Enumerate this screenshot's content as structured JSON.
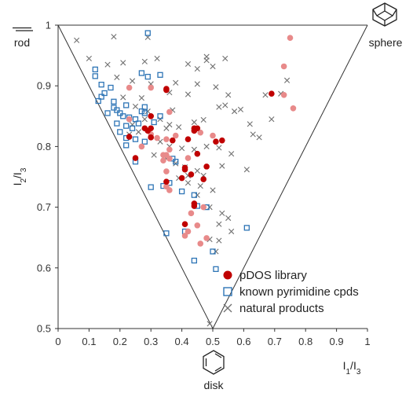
{
  "chart_data": {
    "type": "scatter",
    "title": "",
    "xlabel": "I1/I3",
    "ylabel": "I2/I3",
    "xlim": [
      0,
      1
    ],
    "ylim": [
      0.5,
      1
    ],
    "x_ticks": [
      "0",
      "0.1",
      "0.2",
      "0.3",
      "0.4",
      "0.5",
      "0.6",
      "0.7",
      "0.8",
      "0.9",
      "1"
    ],
    "y_ticks": [
      "0.5",
      "0.6",
      "0.7",
      "0.8",
      "0.9",
      "1"
    ],
    "grid": false,
    "legend_position": "bottom-right",
    "vertices": {
      "rod": "rod",
      "disk": "disk",
      "sphere": "sphere"
    },
    "colors": {
      "pdos_dark": "#c00000",
      "pdos_light": "#e88a8a",
      "pyrimidine": "#2e75b6",
      "natural": "#707070",
      "frame": "#333333"
    },
    "series": [
      {
        "name": "pDOS library",
        "marker": "circle",
        "points": [
          [
            0.35,
            0.895
          ],
          [
            0.69,
            0.887
          ],
          [
            0.3,
            0.85
          ],
          [
            0.28,
            0.83
          ],
          [
            0.23,
            0.816
          ],
          [
            0.29,
            0.826
          ],
          [
            0.37,
            0.81
          ],
          [
            0.42,
            0.812
          ],
          [
            0.3,
            0.815
          ],
          [
            0.44,
            0.826
          ],
          [
            0.45,
            0.83
          ],
          [
            0.51,
            0.808
          ],
          [
            0.45,
            0.788
          ],
          [
            0.25,
            0.781
          ],
          [
            0.41,
            0.765
          ],
          [
            0.48,
            0.767
          ],
          [
            0.43,
            0.754
          ],
          [
            0.4,
            0.748
          ],
          [
            0.41,
            0.762
          ],
          [
            0.47,
            0.746
          ],
          [
            0.35,
            0.742
          ],
          [
            0.44,
            0.706
          ],
          [
            0.44,
            0.702
          ],
          [
            0.41,
            0.672
          ],
          [
            0.35,
            0.893
          ],
          [
            0.53,
            0.81
          ],
          [
            0.3,
            0.83
          ],
          [
            0.44,
            0.83
          ]
        ],
        "light_points": [
          [
            0.75,
            0.979
          ],
          [
            0.73,
            0.932
          ],
          [
            0.73,
            0.885
          ],
          [
            0.76,
            0.863
          ],
          [
            0.3,
            0.897
          ],
          [
            0.23,
            0.897
          ],
          [
            0.36,
            0.857
          ],
          [
            0.23,
            0.845
          ],
          [
            0.3,
            0.82
          ],
          [
            0.32,
            0.814
          ],
          [
            0.35,
            0.812
          ],
          [
            0.38,
            0.818
          ],
          [
            0.5,
            0.818
          ],
          [
            0.36,
            0.795
          ],
          [
            0.46,
            0.823
          ],
          [
            0.34,
            0.786
          ],
          [
            0.35,
            0.786
          ],
          [
            0.42,
            0.781
          ],
          [
            0.36,
            0.78
          ],
          [
            0.34,
            0.777
          ],
          [
            0.35,
            0.759
          ],
          [
            0.35,
            0.734
          ],
          [
            0.36,
            0.728
          ],
          [
            0.43,
            0.69
          ],
          [
            0.45,
            0.67
          ],
          [
            0.42,
            0.66
          ],
          [
            0.41,
            0.653
          ],
          [
            0.48,
            0.649
          ],
          [
            0.46,
            0.64
          ],
          [
            0.47,
            0.7
          ],
          [
            0.27,
            0.8
          ]
        ]
      },
      {
        "name": "known pyrimidine cpds",
        "marker": "open-square",
        "points": [
          [
            0.29,
            0.987
          ],
          [
            0.12,
            0.927
          ],
          [
            0.12,
            0.916
          ],
          [
            0.14,
            0.902
          ],
          [
            0.17,
            0.897
          ],
          [
            0.15,
            0.888
          ],
          [
            0.14,
            0.882
          ],
          [
            0.18,
            0.874
          ],
          [
            0.18,
            0.864
          ],
          [
            0.22,
            0.868
          ],
          [
            0.19,
            0.86
          ],
          [
            0.2,
            0.855
          ],
          [
            0.21,
            0.85
          ],
          [
            0.23,
            0.848
          ],
          [
            0.25,
            0.845
          ],
          [
            0.27,
            0.858
          ],
          [
            0.28,
            0.855
          ],
          [
            0.26,
            0.838
          ],
          [
            0.22,
            0.834
          ],
          [
            0.24,
            0.83
          ],
          [
            0.2,
            0.824
          ],
          [
            0.22,
            0.814
          ],
          [
            0.25,
            0.812
          ],
          [
            0.28,
            0.808
          ],
          [
            0.27,
            0.921
          ],
          [
            0.29,
            0.915
          ],
          [
            0.33,
            0.918
          ],
          [
            0.13,
            0.875
          ],
          [
            0.16,
            0.855
          ],
          [
            0.25,
            0.775
          ],
          [
            0.28,
            0.865
          ],
          [
            0.33,
            0.85
          ],
          [
            0.37,
            0.78
          ],
          [
            0.3,
            0.733
          ],
          [
            0.34,
            0.735
          ],
          [
            0.38,
            0.775
          ],
          [
            0.36,
            0.74
          ],
          [
            0.4,
            0.726
          ],
          [
            0.44,
            0.72
          ],
          [
            0.45,
            0.702
          ],
          [
            0.48,
            0.7
          ],
          [
            0.41,
            0.66
          ],
          [
            0.35,
            0.657
          ],
          [
            0.44,
            0.612
          ],
          [
            0.51,
            0.598
          ],
          [
            0.61,
            0.666
          ],
          [
            0.5,
            0.627
          ],
          [
            0.31,
            0.84
          ],
          [
            0.22,
            0.802
          ],
          [
            0.19,
            0.838
          ]
        ]
      },
      {
        "name": "natural products",
        "marker": "x",
        "points": [
          [
            0.06,
            0.975
          ],
          [
            0.18,
            0.981
          ],
          [
            0.29,
            0.98
          ],
          [
            0.1,
            0.945
          ],
          [
            0.16,
            0.935
          ],
          [
            0.21,
            0.938
          ],
          [
            0.28,
            0.94
          ],
          [
            0.32,
            0.945
          ],
          [
            0.42,
            0.936
          ],
          [
            0.48,
            0.942
          ],
          [
            0.48,
            0.948
          ],
          [
            0.54,
            0.945
          ],
          [
            0.45,
            0.928
          ],
          [
            0.5,
            0.932
          ],
          [
            0.19,
            0.914
          ],
          [
            0.24,
            0.908
          ],
          [
            0.3,
            0.903
          ],
          [
            0.38,
            0.905
          ],
          [
            0.45,
            0.903
          ],
          [
            0.51,
            0.898
          ],
          [
            0.36,
            0.889
          ],
          [
            0.42,
            0.886
          ],
          [
            0.55,
            0.885
          ],
          [
            0.59,
            0.861
          ],
          [
            0.74,
            0.909
          ],
          [
            0.72,
            0.887
          ],
          [
            0.67,
            0.885
          ],
          [
            0.21,
            0.881
          ],
          [
            0.25,
            0.866
          ],
          [
            0.29,
            0.858
          ],
          [
            0.33,
            0.845
          ],
          [
            0.36,
            0.836
          ],
          [
            0.39,
            0.832
          ],
          [
            0.44,
            0.84
          ],
          [
            0.47,
            0.844
          ],
          [
            0.52,
            0.865
          ],
          [
            0.54,
            0.868
          ],
          [
            0.57,
            0.858
          ],
          [
            0.62,
            0.837
          ],
          [
            0.69,
            0.845
          ],
          [
            0.63,
            0.82
          ],
          [
            0.65,
            0.815
          ],
          [
            0.24,
            0.836
          ],
          [
            0.26,
            0.824
          ],
          [
            0.3,
            0.818
          ],
          [
            0.33,
            0.808
          ],
          [
            0.36,
            0.8
          ],
          [
            0.4,
            0.797
          ],
          [
            0.44,
            0.795
          ],
          [
            0.48,
            0.8
          ],
          [
            0.52,
            0.798
          ],
          [
            0.56,
            0.788
          ],
          [
            0.31,
            0.786
          ],
          [
            0.35,
            0.78
          ],
          [
            0.38,
            0.772
          ],
          [
            0.41,
            0.766
          ],
          [
            0.45,
            0.76
          ],
          [
            0.53,
            0.768
          ],
          [
            0.61,
            0.762
          ],
          [
            0.39,
            0.748
          ],
          [
            0.42,
            0.74
          ],
          [
            0.46,
            0.735
          ],
          [
            0.5,
            0.728
          ],
          [
            0.45,
            0.72
          ],
          [
            0.49,
            0.7
          ],
          [
            0.53,
            0.69
          ],
          [
            0.55,
            0.682
          ],
          [
            0.52,
            0.672
          ],
          [
            0.56,
            0.66
          ],
          [
            0.52,
            0.645
          ],
          [
            0.49,
            0.647
          ],
          [
            0.51,
            0.627
          ],
          [
            0.49,
            0.508
          ],
          [
            0.42,
            0.752
          ],
          [
            0.47,
            0.752
          ],
          [
            0.23,
            0.82
          ],
          [
            0.28,
            0.845
          ],
          [
            0.35,
            0.83
          ],
          [
            0.37,
            0.86
          ],
          [
            0.27,
            0.88
          ]
        ]
      }
    ]
  }
}
